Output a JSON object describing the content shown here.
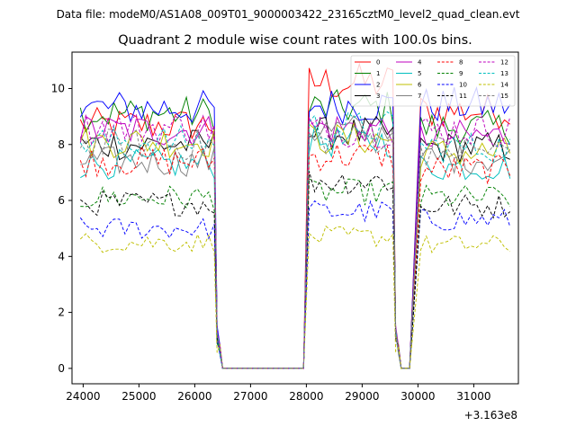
{
  "suptitle": "Data file: modeM0/AS1A08_009T01_9000003422_23165cztM0_level2_quad_clean.evt",
  "chart_data": {
    "type": "line",
    "title": "Quadrant 2 module wise count rates with 100.0s bins.",
    "xlabel": "",
    "ylabel": "",
    "x_offset_label": "+3.163e8",
    "xlim": [
      23800,
      31800
    ],
    "ylim": [
      -0.55,
      11.3
    ],
    "x_ticks": [
      24000,
      25000,
      26000,
      27000,
      28000,
      29000,
      30000,
      31000
    ],
    "y_ticks": [
      0,
      2,
      4,
      6,
      8,
      10
    ],
    "legend_position": "upper right",
    "grid": false,
    "series": [
      {
        "name": "0",
        "color": "#ff0000",
        "dash": "solid",
        "seg_levels": [
          8.7,
          10.2,
          9.2
        ]
      },
      {
        "name": "1",
        "color": "#008000",
        "dash": "solid",
        "seg_levels": [
          9.1,
          9.3,
          8.6
        ]
      },
      {
        "name": "2",
        "color": "#0000ff",
        "dash": "solid",
        "seg_levels": [
          9.3,
          9.4,
          9.4
        ]
      },
      {
        "name": "3",
        "color": "#000000",
        "dash": "solid",
        "seg_levels": [
          8.0,
          8.4,
          7.9
        ]
      },
      {
        "name": "4",
        "color": "#bf00bf",
        "dash": "solid",
        "seg_levels": [
          8.5,
          8.6,
          8.3
        ]
      },
      {
        "name": "5",
        "color": "#00bfbf",
        "dash": "solid",
        "seg_levels": [
          7.3,
          8.1,
          7.2
        ]
      },
      {
        "name": "6",
        "color": "#bfbf00",
        "dash": "solid",
        "seg_levels": [
          8.1,
          8.2,
          7.7
        ]
      },
      {
        "name": "7",
        "color": "#808080",
        "dash": "solid",
        "seg_levels": [
          7.4,
          8.5,
          7.5
        ]
      },
      {
        "name": "8",
        "color": "#ff0000",
        "dash": "dashed",
        "seg_levels": [
          7.4,
          7.6,
          7.1
        ]
      },
      {
        "name": "9",
        "color": "#008000",
        "dash": "dashed",
        "seg_levels": [
          6.1,
          6.3,
          6.1
        ]
      },
      {
        "name": "10",
        "color": "#0000ff",
        "dash": "dashed",
        "seg_levels": [
          5.0,
          5.6,
          5.3
        ]
      },
      {
        "name": "11",
        "color": "#000000",
        "dash": "dashed",
        "seg_levels": [
          5.9,
          6.7,
          5.8
        ]
      },
      {
        "name": "12",
        "color": "#bf00bf",
        "dash": "dashed",
        "seg_levels": [
          8.6,
          8.5,
          8.5
        ]
      },
      {
        "name": "13",
        "color": "#00bfbf",
        "dash": "dashed",
        "seg_levels": [
          8.1,
          8.6,
          7.9
        ]
      },
      {
        "name": "14",
        "color": "#bfbf00",
        "dash": "dashed",
        "seg_levels": [
          4.5,
          4.7,
          4.4
        ]
      },
      {
        "name": "15",
        "color": "#808080",
        "dash": "dashed",
        "seg_levels": [
          8.0,
          8.2,
          7.8
        ]
      }
    ],
    "segments": [
      {
        "x_start": 23950,
        "x_end": 26350
      },
      {
        "x_start": 28050,
        "x_end": 29550
      },
      {
        "x_start": 30050,
        "x_end": 31650
      }
    ],
    "gaps": [
      {
        "x_start": 26450,
        "x_end": 27950
      },
      {
        "x_start": 29650,
        "x_end": 29850
      }
    ],
    "bin_seconds": 100
  }
}
